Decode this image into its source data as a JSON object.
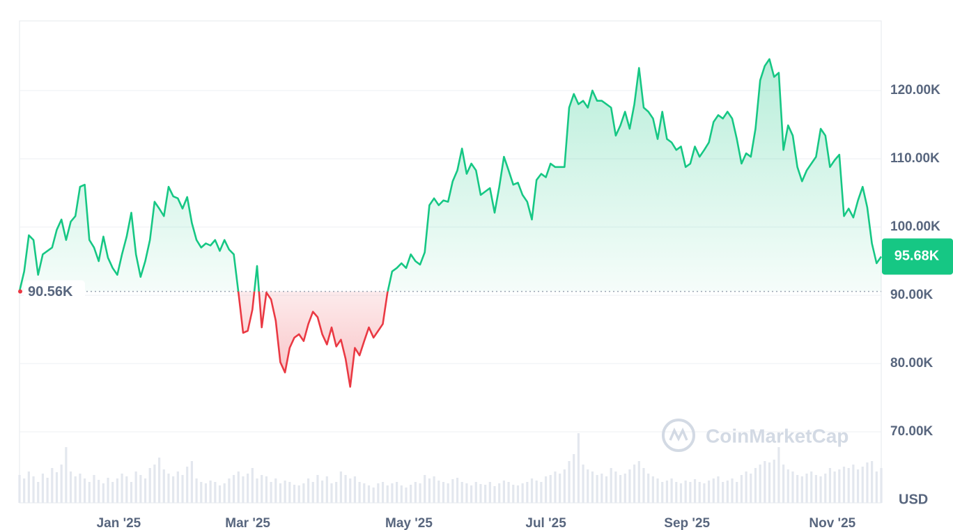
{
  "chart_data": {
    "type": "baseline-line",
    "color_up": "#16c784",
    "color_down": "#ea3943",
    "baseline_value": 90560,
    "baseline_label": "90.56K",
    "current_label": "95.68K",
    "currency": "USD",
    "watermark": "CoinMarketCap",
    "grid": true,
    "xlim": [
      0,
      185
    ],
    "xticks": [
      {
        "value": 21.3,
        "label": "Jan '25"
      },
      {
        "value": 49,
        "label": "Mar '25"
      },
      {
        "value": 83.6,
        "label": "May '25"
      },
      {
        "value": 113,
        "label": "Jul '25"
      },
      {
        "value": 143.3,
        "label": "Sep '25"
      },
      {
        "value": 174.5,
        "label": "Nov '25"
      }
    ],
    "ylim": [
      59600,
      130200
    ],
    "yticks": [
      {
        "value": 70000,
        "label": "70.00K"
      },
      {
        "value": 80000,
        "label": "80.00K"
      },
      {
        "value": 90000,
        "label": "90.00K"
      },
      {
        "value": 100000,
        "label": "100.00K"
      },
      {
        "value": 110000,
        "label": "110.00K"
      },
      {
        "value": 120000,
        "label": "120.00K"
      }
    ],
    "values": [
      90600,
      93500,
      98800,
      98100,
      93000,
      96000,
      96500,
      97000,
      99600,
      101100,
      98100,
      100800,
      101600,
      105900,
      106200,
      98100,
      97000,
      95000,
      98600,
      95500,
      94000,
      93000,
      96000,
      98600,
      102100,
      96000,
      92700,
      95000,
      98100,
      103700,
      102700,
      101600,
      105900,
      104500,
      104200,
      102700,
      104400,
      100600,
      98100,
      97000,
      97600,
      97300,
      98100,
      96500,
      98100,
      96700,
      96000,
      90400,
      84500,
      84800,
      87900,
      94300,
      85300,
      90400,
      89400,
      86300,
      80200,
      78700,
      82300,
      83800,
      84300,
      83300,
      85800,
      87600,
      86800,
      84300,
      82800,
      85300,
      82500,
      83500,
      80700,
      76600,
      82300,
      81200,
      83300,
      85300,
      83800,
      84800,
      85800,
      90400,
      93500,
      94000,
      94700,
      94000,
      96000,
      95000,
      94500,
      96300,
      103200,
      104200,
      103200,
      103900,
      103700,
      106700,
      108300,
      111500,
      107800,
      109300,
      108300,
      104700,
      105200,
      105700,
      102100,
      105900,
      110300,
      108300,
      106200,
      106500,
      104700,
      103700,
      101100,
      106900,
      107800,
      107300,
      109300,
      108800,
      108800,
      108800,
      117500,
      119500,
      118000,
      118500,
      117500,
      120000,
      118500,
      118500,
      118000,
      117500,
      113400,
      114900,
      116900,
      114400,
      118000,
      123300,
      117500,
      116900,
      115900,
      112900,
      116900,
      112900,
      112400,
      111300,
      111800,
      108800,
      109300,
      111800,
      110300,
      111300,
      112400,
      115400,
      116400,
      115900,
      116900,
      115900,
      112900,
      109300,
      110800,
      110300,
      114400,
      121500,
      123600,
      124600,
      122000,
      122600,
      111300,
      114900,
      113400,
      108800,
      106700,
      108300,
      109300,
      110300,
      114400,
      113400,
      108800,
      109800,
      110600,
      101600,
      102700,
      101400,
      103900,
      105900,
      102900,
      97600,
      94700,
      95680
    ],
    "volume": [
      40,
      35,
      45,
      38,
      30,
      42,
      36,
      50,
      44,
      55,
      80,
      45,
      38,
      42,
      35,
      30,
      40,
      33,
      28,
      36,
      30,
      35,
      42,
      38,
      30,
      45,
      40,
      35,
      50,
      55,
      65,
      48,
      42,
      38,
      45,
      40,
      52,
      60,
      35,
      30,
      28,
      32,
      30,
      25,
      28,
      35,
      40,
      45,
      38,
      42,
      50,
      35,
      40,
      38,
      30,
      35,
      28,
      32,
      30,
      26,
      25,
      28,
      35,
      30,
      40,
      32,
      38,
      28,
      30,
      45,
      40,
      35,
      38,
      30,
      28,
      25,
      22,
      28,
      30,
      25,
      28,
      30,
      25,
      22,
      26,
      30,
      28,
      40,
      35,
      38,
      32,
      30,
      28,
      34,
      36,
      30,
      28,
      25,
      30,
      27,
      26,
      30,
      24,
      28,
      32,
      30,
      26,
      25,
      28,
      30,
      35,
      32,
      30,
      38,
      40,
      45,
      42,
      48,
      60,
      70,
      100,
      55,
      48,
      45,
      40,
      42,
      38,
      50,
      45,
      40,
      42,
      48,
      55,
      60,
      50,
      42,
      38,
      35,
      30,
      32,
      35,
      30,
      28,
      32,
      30,
      34,
      30,
      28,
      32,
      35,
      38,
      30,
      32,
      35,
      30,
      40,
      45,
      42,
      50,
      55,
      60,
      58,
      62,
      80,
      55,
      48,
      45,
      40,
      38,
      42,
      45,
      40,
      38,
      42,
      50,
      45,
      48,
      52,
      50,
      55,
      48,
      52,
      58,
      60,
      45,
      50
    ]
  }
}
